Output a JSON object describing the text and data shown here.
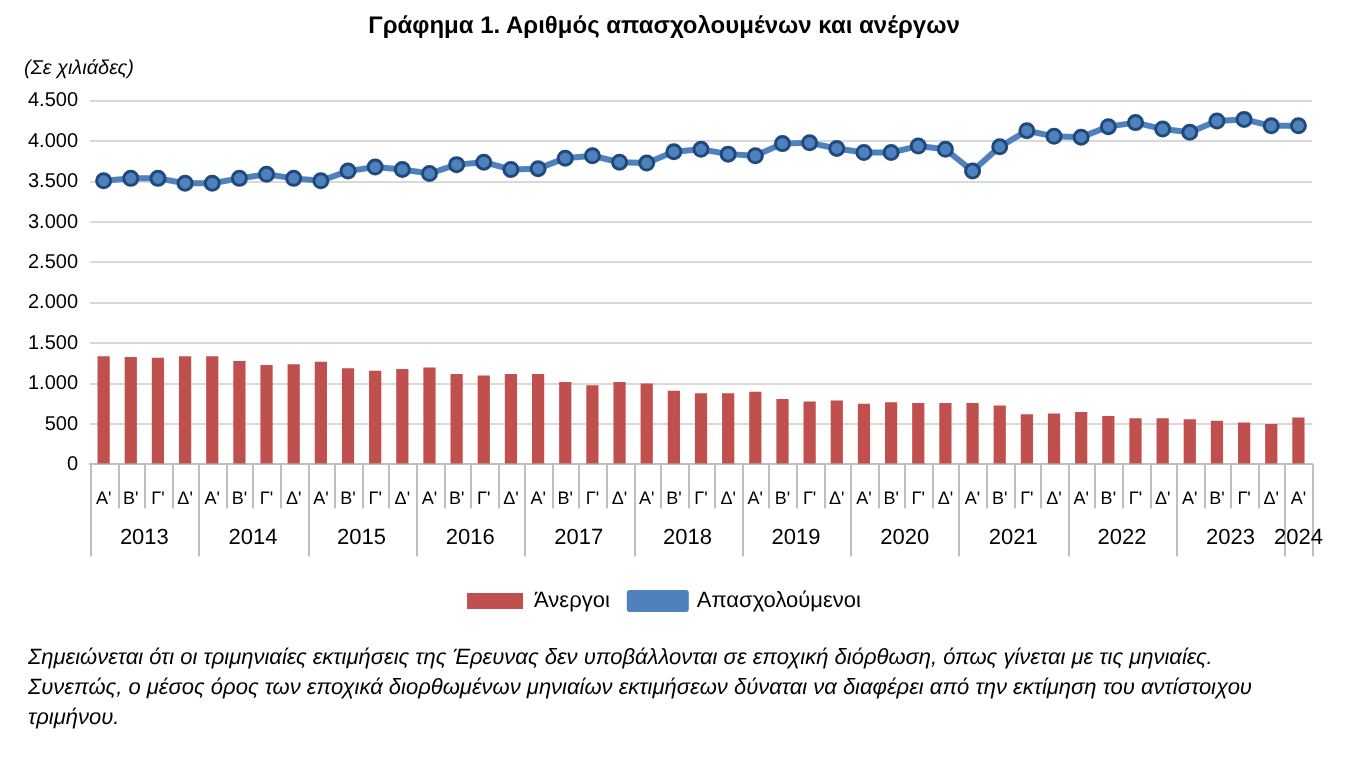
{
  "chart_data": {
    "type": "bar",
    "title": "Γράφημα 1. Αριθμός απασχολουμένων και ανέργων",
    "ylabel": "(Σε χιλιάδες)",
    "categories": [
      "Α'",
      "Β'",
      "Γ'",
      "Δ'",
      "Α'",
      "Β'",
      "Γ'",
      "Δ'",
      "Α'",
      "Β'",
      "Γ'",
      "Δ'",
      "Α'",
      "Β'",
      "Γ'",
      "Δ'",
      "Α'",
      "Β'",
      "Γ'",
      "Δ'",
      "Α'",
      "Β'",
      "Γ'",
      "Δ'",
      "Α'",
      "Β'",
      "Γ'",
      "Δ'",
      "Α'",
      "Β'",
      "Γ'",
      "Δ'",
      "Α'",
      "Β'",
      "Γ'",
      "Δ'",
      "Α'",
      "Β'",
      "Γ'",
      "Δ'",
      "Α'",
      "Β'",
      "Γ'",
      "Δ'",
      "Α'"
    ],
    "series": [
      {
        "name": "Άνεργοι",
        "color": "#c0504d",
        "values": [
          1340,
          1330,
          1320,
          1340,
          1340,
          1280,
          1230,
          1240,
          1270,
          1190,
          1160,
          1180,
          1200,
          1120,
          1100,
          1120,
          1120,
          1020,
          980,
          1020,
          1000,
          910,
          880,
          880,
          900,
          810,
          780,
          790,
          750,
          770,
          760,
          760,
          760,
          730,
          620,
          630,
          650,
          600,
          570,
          570,
          560,
          540,
          520,
          500,
          580
        ]
      },
      {
        "name": "Απασχολούμενοι",
        "type": "line",
        "color": "#4f81bd",
        "values": [
          3510,
          3540,
          3540,
          3480,
          3480,
          3540,
          3590,
          3540,
          3510,
          3630,
          3680,
          3650,
          3600,
          3710,
          3740,
          3650,
          3660,
          3790,
          3820,
          3740,
          3730,
          3870,
          3900,
          3840,
          3820,
          3970,
          3980,
          3910,
          3860,
          3860,
          3940,
          3900,
          3630,
          3930,
          4130,
          4060,
          4050,
          4180,
          4230,
          4150,
          4110,
          4250,
          4270,
          4190,
          4190
        ]
      }
    ],
    "ylim": [
      0,
      4500
    ],
    "yticks": [
      0,
      500,
      {
        "value": 1000,
        "label": "1.000"
      },
      {
        "value": 1500,
        "label": "1.500"
      },
      {
        "value": 2000,
        "label": "2.000"
      },
      {
        "value": 2500,
        "label": "2.500"
      },
      {
        "value": 3000,
        "label": "3.000"
      },
      {
        "value": 3500,
        "label": "3.500"
      },
      {
        "value": 4000,
        "label": "4.000"
      },
      {
        "value": 4500,
        "label": "4.500"
      }
    ],
    "grid": "y",
    "legend": "bottom",
    "marker": "circle",
    "annotations": [
      {
        "text": "2013"
      },
      {
        "text": "2014"
      },
      {
        "text": "2015"
      },
      {
        "text": "2016"
      },
      {
        "text": "2017"
      },
      {
        "text": "2018"
      },
      {
        "text": "2019"
      },
      {
        "text": "2020"
      },
      {
        "text": "2021"
      },
      {
        "text": "2022"
      },
      {
        "text": "2023"
      },
      {
        "text": "2024"
      },
      "Σημειώνεται ότι οι τριμηνιαίες εκτιμήσεις της Έρευνας δεν υποβάλλονται σε εποχική διόρθωση, όπως γίνεται με τις μηνιαίες.",
      "Συνεπώς, ο μέσος όρος των εποχικά διορθωμένων μηνιαίων εκτιμήσεων δύναται να διαφέρει από την εκτίμηση του αντίστοιχου τριμήνου."
    ]
  }
}
